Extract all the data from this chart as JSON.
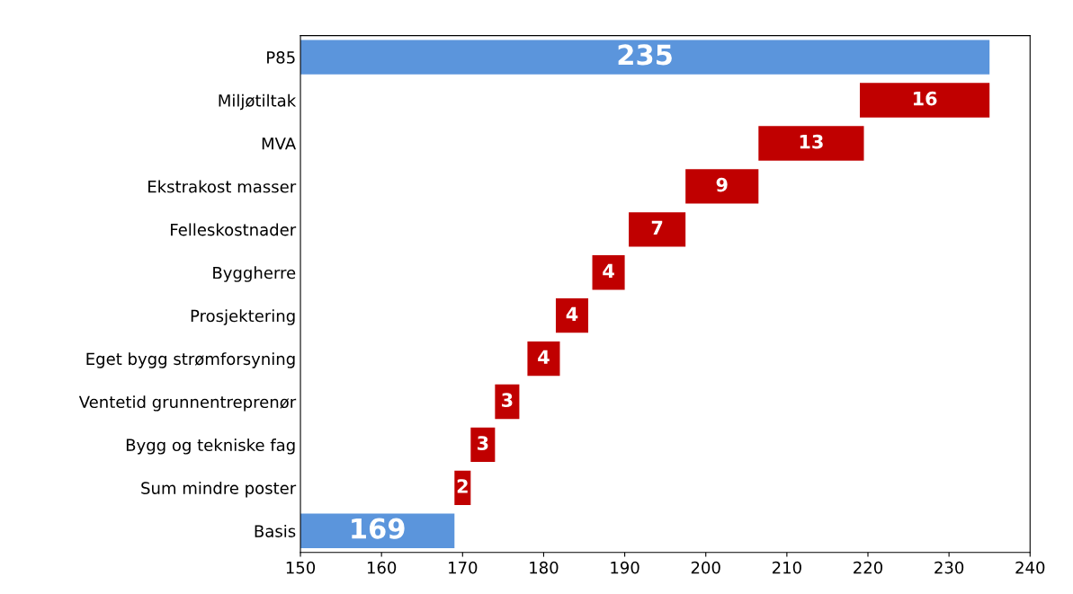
{
  "chart_data": {
    "type": "bar",
    "orientation": "horizontal",
    "categories": [
      "P85",
      "Miljøtiltak",
      "MVA",
      "Ekstrakost masser",
      "Felleskostnader",
      "Byggherre",
      "Prosjektering",
      "Eget bygg strømforsyning",
      "Ventetid grunnentreprenør",
      "Bygg og tekniske fag",
      "Sum mindre poster",
      "Basis"
    ],
    "values": [
      235,
      16,
      13,
      9,
      7,
      4,
      4,
      4,
      3,
      3,
      2,
      169
    ],
    "base": [
      0,
      219,
      206.5,
      197.5,
      190.5,
      186,
      181.5,
      178,
      174,
      171,
      169,
      0
    ],
    "colors": [
      "#5b95dc",
      "#c00000",
      "#c00000",
      "#c00000",
      "#c00000",
      "#c00000",
      "#c00000",
      "#c00000",
      "#c00000",
      "#c00000",
      "#c00000",
      "#5b95dc"
    ],
    "data_labels": true,
    "xlim": [
      150,
      240
    ],
    "xticks": [
      150,
      160,
      170,
      180,
      190,
      200,
      210,
      220,
      230,
      240
    ],
    "grid": false,
    "legend": false
  }
}
